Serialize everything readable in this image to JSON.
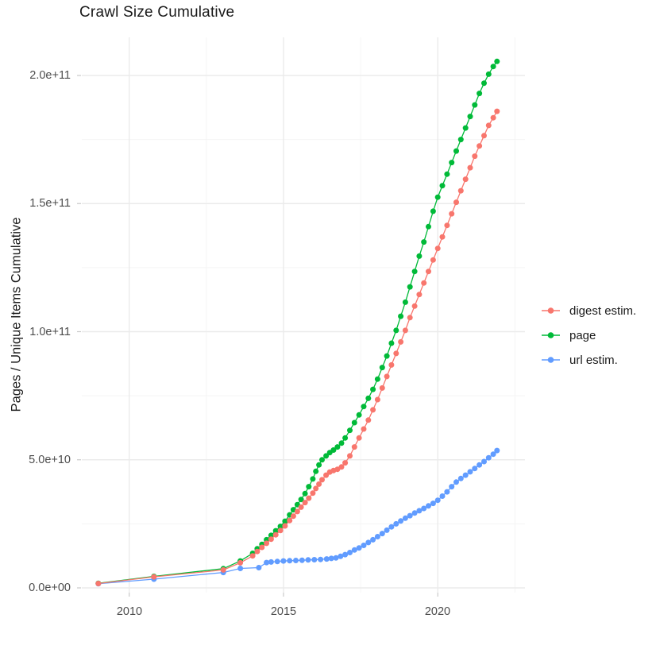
{
  "chart_data": {
    "type": "line",
    "title": "Crawl Size Cumulative",
    "xlabel": "",
    "ylabel": "Pages / Unique Items Cumulative",
    "value_unit": "billions (1e9) of pages / unique items",
    "background": "#FFFFFF",
    "grid": true,
    "grid_color": "#EBEBEB",
    "minor_grid_color": "#F4F4F4",
    "tick_mark_color": "#C9C9C9",
    "x_axis": {
      "range": [
        2008.45,
        2022.85
      ],
      "ticks": [
        {
          "label": "2010",
          "value": 2010
        },
        {
          "label": "2015",
          "value": 2015
        },
        {
          "label": "2020",
          "value": 2020
        }
      ],
      "minor": [
        2012.5,
        2017.5,
        2022.5
      ]
    },
    "y_axis": {
      "range_e9": [
        -1.9,
        215
      ],
      "ticks": [
        {
          "label": "0.0e+00",
          "value": 0
        },
        {
          "label": "5.0e+10",
          "value": 50
        },
        {
          "label": "1.0e+11",
          "value": 100
        },
        {
          "label": "1.5e+11",
          "value": 150
        },
        {
          "label": "2.0e+11",
          "value": 200
        }
      ],
      "minor": [
        25,
        75,
        125,
        175
      ]
    },
    "legend": {
      "position": "right",
      "entries": [
        "digest estim.",
        "page",
        "url estim."
      ]
    },
    "series": [
      {
        "name": "digest estim.",
        "color": "#F8766D",
        "points": [
          [
            2009.0,
            1.7
          ],
          [
            2010.8,
            4.3
          ],
          [
            2013.05,
            7.0
          ],
          [
            2013.6,
            9.8
          ],
          [
            2014.0,
            12.5
          ],
          [
            2014.15,
            14.2
          ],
          [
            2014.3,
            15.8
          ],
          [
            2014.45,
            17.4
          ],
          [
            2014.6,
            19.0
          ],
          [
            2014.75,
            20.7
          ],
          [
            2014.9,
            22.4
          ],
          [
            2015.05,
            24.2
          ],
          [
            2015.2,
            26.3
          ],
          [
            2015.32,
            28.0
          ],
          [
            2015.45,
            29.8
          ],
          [
            2015.57,
            31.5
          ],
          [
            2015.7,
            33.3
          ],
          [
            2015.82,
            35.0
          ],
          [
            2015.95,
            37.0
          ],
          [
            2016.05,
            38.8
          ],
          [
            2016.15,
            40.5
          ],
          [
            2016.25,
            42.2
          ],
          [
            2016.38,
            44.0
          ],
          [
            2016.5,
            45.2
          ],
          [
            2016.62,
            45.8
          ],
          [
            2016.75,
            46.3
          ],
          [
            2016.88,
            47.2
          ],
          [
            2017.0,
            48.8
          ],
          [
            2017.15,
            51.5
          ],
          [
            2017.3,
            55.0
          ],
          [
            2017.45,
            58.5
          ],
          [
            2017.6,
            62.0
          ],
          [
            2017.75,
            65.5
          ],
          [
            2017.9,
            69.5
          ],
          [
            2018.05,
            73.5
          ],
          [
            2018.2,
            78.0
          ],
          [
            2018.35,
            82.5
          ],
          [
            2018.5,
            87.0
          ],
          [
            2018.65,
            91.5
          ],
          [
            2018.8,
            96.0
          ],
          [
            2018.95,
            100.5
          ],
          [
            2019.1,
            105.5
          ],
          [
            2019.25,
            110.0
          ],
          [
            2019.4,
            114.5
          ],
          [
            2019.55,
            119.0
          ],
          [
            2019.7,
            123.5
          ],
          [
            2019.85,
            128.0
          ],
          [
            2020.0,
            132.5
          ],
          [
            2020.15,
            137.0
          ],
          [
            2020.3,
            141.5
          ],
          [
            2020.45,
            146.0
          ],
          [
            2020.6,
            150.5
          ],
          [
            2020.75,
            155.0
          ],
          [
            2020.9,
            159.5
          ],
          [
            2021.05,
            164.0
          ],
          [
            2021.2,
            168.5
          ],
          [
            2021.35,
            172.5
          ],
          [
            2021.5,
            176.5
          ],
          [
            2021.65,
            180.5
          ],
          [
            2021.8,
            183.5
          ],
          [
            2021.92,
            186.0
          ]
        ]
      },
      {
        "name": "page",
        "color": "#00BA38",
        "points": [
          [
            2009.0,
            1.8
          ],
          [
            2010.8,
            4.5
          ],
          [
            2013.05,
            7.5
          ],
          [
            2013.6,
            10.5
          ],
          [
            2014.0,
            13.5
          ],
          [
            2014.15,
            15.3
          ],
          [
            2014.3,
            17.0
          ],
          [
            2014.45,
            18.8
          ],
          [
            2014.6,
            20.5
          ],
          [
            2014.75,
            22.3
          ],
          [
            2014.9,
            24.0
          ],
          [
            2015.05,
            26.0
          ],
          [
            2015.2,
            28.5
          ],
          [
            2015.32,
            30.5
          ],
          [
            2015.45,
            32.5
          ],
          [
            2015.57,
            34.5
          ],
          [
            2015.7,
            36.8
          ],
          [
            2015.82,
            39.5
          ],
          [
            2015.95,
            42.5
          ],
          [
            2016.05,
            45.5
          ],
          [
            2016.15,
            48.0
          ],
          [
            2016.25,
            50.0
          ],
          [
            2016.38,
            51.5
          ],
          [
            2016.5,
            52.8
          ],
          [
            2016.62,
            53.8
          ],
          [
            2016.75,
            55.0
          ],
          [
            2016.88,
            56.5
          ],
          [
            2017.0,
            58.5
          ],
          [
            2017.15,
            61.5
          ],
          [
            2017.3,
            64.5
          ],
          [
            2017.45,
            67.5
          ],
          [
            2017.6,
            70.8
          ],
          [
            2017.75,
            74.0
          ],
          [
            2017.9,
            77.5
          ],
          [
            2018.05,
            81.5
          ],
          [
            2018.2,
            86.0
          ],
          [
            2018.35,
            90.5
          ],
          [
            2018.5,
            95.5
          ],
          [
            2018.65,
            100.5
          ],
          [
            2018.8,
            106.0
          ],
          [
            2018.95,
            111.5
          ],
          [
            2019.1,
            117.5
          ],
          [
            2019.25,
            123.5
          ],
          [
            2019.4,
            129.5
          ],
          [
            2019.55,
            135.0
          ],
          [
            2019.7,
            141.0
          ],
          [
            2019.85,
            147.0
          ],
          [
            2020.0,
            152.5
          ],
          [
            2020.15,
            157.0
          ],
          [
            2020.3,
            161.5
          ],
          [
            2020.45,
            166.0
          ],
          [
            2020.6,
            170.5
          ],
          [
            2020.75,
            175.0
          ],
          [
            2020.9,
            179.5
          ],
          [
            2021.05,
            184.0
          ],
          [
            2021.2,
            188.5
          ],
          [
            2021.35,
            193.0
          ],
          [
            2021.5,
            197.0
          ],
          [
            2021.65,
            200.5
          ],
          [
            2021.8,
            203.5
          ],
          [
            2021.92,
            205.5
          ]
        ]
      },
      {
        "name": "url estim.",
        "color": "#619CFF",
        "points": [
          [
            2009.0,
            1.6
          ],
          [
            2010.8,
            3.4
          ],
          [
            2013.05,
            6.0
          ],
          [
            2013.6,
            7.6
          ],
          [
            2014.2,
            7.9
          ],
          [
            2014.45,
            9.9
          ],
          [
            2014.6,
            10.1
          ],
          [
            2014.8,
            10.3
          ],
          [
            2015.0,
            10.5
          ],
          [
            2015.2,
            10.6
          ],
          [
            2015.4,
            10.7
          ],
          [
            2015.6,
            10.8
          ],
          [
            2015.8,
            10.9
          ],
          [
            2016.0,
            11.0
          ],
          [
            2016.2,
            11.1
          ],
          [
            2016.4,
            11.3
          ],
          [
            2016.55,
            11.5
          ],
          [
            2016.7,
            11.7
          ],
          [
            2016.85,
            12.3
          ],
          [
            2017.0,
            13.0
          ],
          [
            2017.15,
            13.8
          ],
          [
            2017.3,
            14.8
          ],
          [
            2017.45,
            15.6
          ],
          [
            2017.6,
            16.6
          ],
          [
            2017.75,
            17.7
          ],
          [
            2017.9,
            18.8
          ],
          [
            2018.05,
            20.0
          ],
          [
            2018.2,
            21.2
          ],
          [
            2018.35,
            22.5
          ],
          [
            2018.5,
            23.8
          ],
          [
            2018.65,
            25.0
          ],
          [
            2018.8,
            26.1
          ],
          [
            2018.95,
            27.2
          ],
          [
            2019.1,
            28.2
          ],
          [
            2019.25,
            29.2
          ],
          [
            2019.4,
            30.1
          ],
          [
            2019.55,
            31.0
          ],
          [
            2019.7,
            32.0
          ],
          [
            2019.85,
            33.0
          ],
          [
            2020.0,
            34.2
          ],
          [
            2020.15,
            35.8
          ],
          [
            2020.3,
            37.5
          ],
          [
            2020.45,
            39.5
          ],
          [
            2020.6,
            41.3
          ],
          [
            2020.75,
            42.7
          ],
          [
            2020.9,
            44.0
          ],
          [
            2021.05,
            45.3
          ],
          [
            2021.2,
            46.6
          ],
          [
            2021.35,
            48.0
          ],
          [
            2021.5,
            49.3
          ],
          [
            2021.65,
            50.8
          ],
          [
            2021.8,
            52.2
          ],
          [
            2021.92,
            53.6
          ]
        ]
      }
    ]
  }
}
